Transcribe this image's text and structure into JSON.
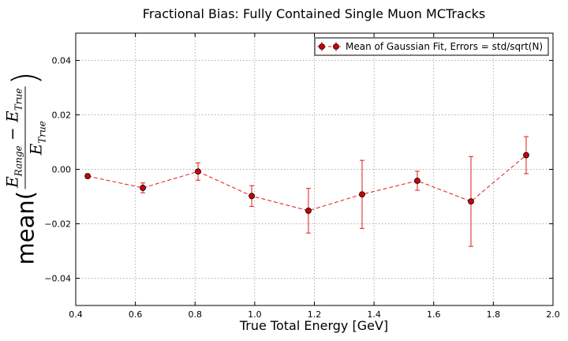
{
  "chart_data": {
    "type": "scatter",
    "title": "Fractional Bias: Fully Contained Single Muon MCTracks",
    "xlabel": "True Total Energy [GeV]",
    "ylabel": {
      "word": "mean(",
      "numerator": "E",
      "numerator_sub1": "Range",
      "numerator_minus": " − E",
      "numerator_sub2": "True",
      "denominator": "E",
      "denominator_sub": "True",
      "close": ")"
    },
    "xlim": [
      0.4,
      2.0
    ],
    "ylim": [
      -0.05,
      0.05
    ],
    "xticks": [
      0.4,
      0.6,
      0.8,
      1.0,
      1.2,
      1.4,
      1.6,
      1.8,
      2.0
    ],
    "xtick_labels": [
      "0.4",
      "0.6",
      "0.8",
      "1.0",
      "1.2",
      "1.4",
      "1.6",
      "1.8",
      "2.0"
    ],
    "yticks": [
      -0.04,
      -0.02,
      0.0,
      0.02,
      0.04
    ],
    "ytick_labels": [
      "−0.04",
      "−0.02",
      "0.00",
      "0.02",
      "0.04"
    ],
    "grid": true,
    "legend_position": "top-right",
    "series": [
      {
        "name": "Mean of Gaussian Fit, Errors = std/sqrt(N)",
        "color": "#e41a1c",
        "marker_color": "#cc0000",
        "line_style": "dashed",
        "x": [
          0.44,
          0.625,
          0.81,
          0.99,
          1.18,
          1.36,
          1.545,
          1.725,
          1.91
        ],
        "y": [
          -0.0025,
          -0.0068,
          -0.0008,
          -0.0098,
          -0.0152,
          -0.0092,
          -0.0042,
          -0.0118,
          0.0052
        ],
        "yerr": [
          0.0008,
          0.0018,
          0.0032,
          0.0038,
          0.0082,
          0.0125,
          0.0035,
          0.0165,
          0.0068
        ]
      }
    ]
  }
}
